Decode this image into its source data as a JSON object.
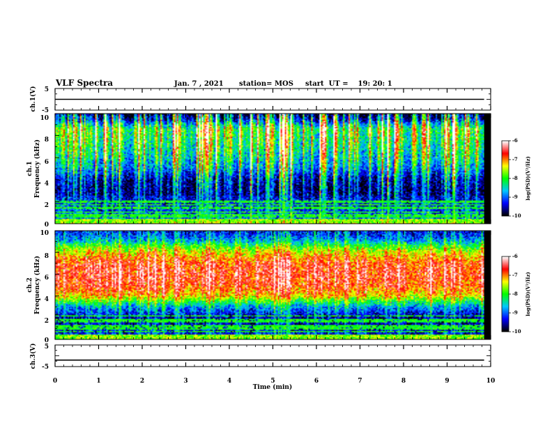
{
  "header": {
    "title": "VLF Spectra",
    "date": "Jan. 7 , 2021",
    "station": "station= MOS",
    "start_ut": "start  UT =    19: 20: 1"
  },
  "x_axis": {
    "label": "Time (min)",
    "range": [
      0,
      10
    ],
    "ticks": [
      "0",
      "1",
      "2",
      "3",
      "4",
      "5",
      "6",
      "7",
      "8",
      "9",
      "10"
    ],
    "data_end": 9.85
  },
  "panels": {
    "ch1_voltage": {
      "label": "ch.1(V)",
      "ticks": [
        "5",
        "-5"
      ],
      "range": [
        -5,
        5
      ],
      "trace_level": 0
    },
    "ch1_spectrogram": {
      "label_line1": "ch.1",
      "label_line2": "Frequency (kHz)",
      "ticks": [
        "10",
        "8",
        "6",
        "4",
        "2",
        "0"
      ],
      "range": [
        0,
        10
      ]
    },
    "ch2_spectrogram": {
      "label_line1": "ch.2",
      "label_line2": "Frequency (kHz)",
      "ticks": [
        "10",
        "8",
        "6",
        "4",
        "2",
        "0"
      ],
      "range": [
        0,
        10
      ]
    },
    "ch3_voltage": {
      "label": "ch.3(V)",
      "ticks": [
        "5",
        "-5"
      ],
      "range": [
        -5,
        5
      ],
      "trace_level": -2
    }
  },
  "colorbars": {
    "label": "log(PSD)(V²/Hz)",
    "ticks": [
      "-6",
      "-7",
      "-8",
      "-9",
      "-10"
    ],
    "range": [
      -10,
      -6
    ],
    "colors": [
      "#000000",
      "#0000ff",
      "#00c8ff",
      "#00ff00",
      "#ffff00",
      "#ff0000",
      "#ffffff"
    ]
  },
  "chart_data": [
    {
      "type": "line",
      "name": "ch.1(V)",
      "x": [
        0,
        9.85
      ],
      "y": [
        0,
        0
      ],
      "xlim": [
        0,
        10
      ],
      "ylim": [
        -5,
        5
      ]
    },
    {
      "type": "heatmap",
      "name": "ch.1",
      "xlabel": "Time (min)",
      "ylabel": "Frequency (kHz)",
      "xlim": [
        0,
        10
      ],
      "ylim": [
        0,
        10
      ],
      "z_range": [
        -10,
        -6
      ],
      "colorbar_label": "log(PSD)(V²/Hz)",
      "profile_freq_khz": [
        0,
        0.5,
        1,
        2,
        3,
        4,
        5,
        6,
        7,
        8,
        8.6,
        9,
        9.5,
        10
      ],
      "profile_log_psd": [
        -8.5,
        -9.3,
        -9.4,
        -9.6,
        -9.7,
        -9.6,
        -9.0,
        -8.7,
        -8.5,
        -8.4,
        -8.3,
        -8.8,
        -9.6,
        -10
      ]
    },
    {
      "type": "heatmap",
      "name": "ch.2",
      "xlabel": "Time (min)",
      "ylabel": "Frequency (kHz)",
      "xlim": [
        0,
        10
      ],
      "ylim": [
        0,
        10
      ],
      "z_range": [
        -10,
        -6
      ],
      "colorbar_label": "log(PSD)(V²/Hz)",
      "profile_freq_khz": [
        0,
        0.5,
        1,
        2,
        3,
        4,
        5,
        6,
        7,
        8,
        8.6,
        9,
        9.5,
        10
      ],
      "profile_log_psd": [
        -8.8,
        -9.4,
        -9.5,
        -9.6,
        -8.8,
        -7.3,
        -6.8,
        -6.7,
        -6.8,
        -7.4,
        -8.0,
        -8.6,
        -9.1,
        -9.3
      ]
    },
    {
      "type": "line",
      "name": "ch.3(V)",
      "x": [
        0,
        9.85
      ],
      "y": [
        -2,
        -2
      ],
      "xlim": [
        0,
        10
      ],
      "ylim": [
        -5,
        5
      ]
    }
  ]
}
